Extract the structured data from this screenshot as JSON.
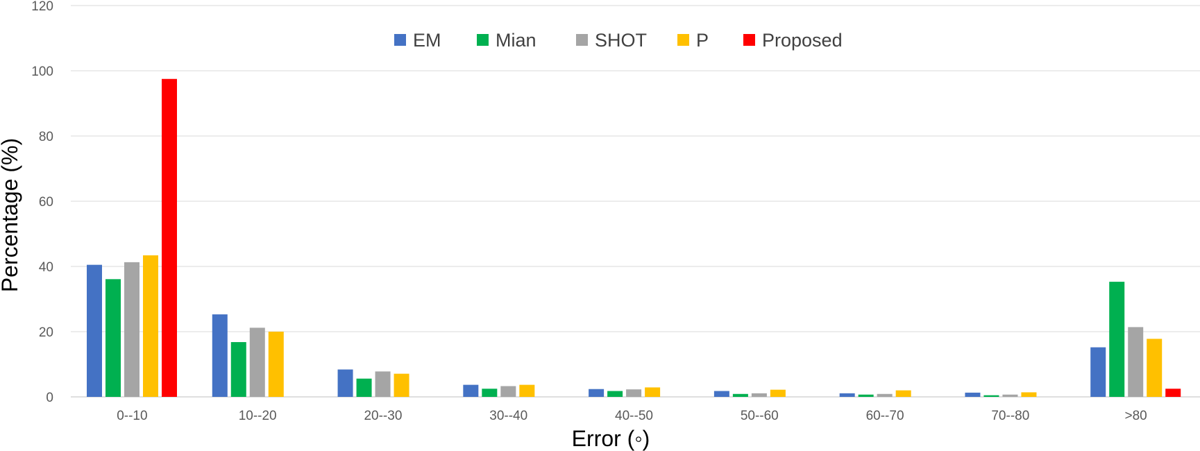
{
  "chart_data": {
    "type": "bar",
    "xlabel": "Error (◦)",
    "ylabel": "Percentage (%)",
    "ylim": [
      0,
      120
    ],
    "yticks": [
      0,
      20,
      40,
      60,
      80,
      100,
      120
    ],
    "grid": true,
    "legend_position": "top",
    "categories": [
      "0--10",
      "10--20",
      "20--30",
      "30--40",
      "40--50",
      "50--60",
      "60--70",
      "70--80",
      ">80"
    ],
    "series": [
      {
        "name": "EM",
        "color": "#4472C4",
        "values": [
          40.5,
          25.3,
          8.4,
          3.7,
          2.4,
          1.8,
          1.1,
          1.3,
          15.2
        ]
      },
      {
        "name": "Mian",
        "color": "#00B050",
        "values": [
          36.1,
          16.8,
          5.6,
          2.5,
          1.8,
          0.9,
          0.7,
          0.5,
          35.3
        ]
      },
      {
        "name": "SHOT",
        "color": "#A5A5A5",
        "values": [
          41.3,
          21.2,
          7.8,
          3.3,
          2.3,
          1.1,
          0.9,
          0.7,
          21.4
        ]
      },
      {
        "name": "P",
        "color": "#FFC000",
        "values": [
          43.4,
          20.0,
          7.1,
          3.7,
          2.9,
          2.2,
          2.0,
          1.4,
          17.8
        ]
      },
      {
        "name": "Proposed",
        "color": "#FF0000",
        "values": [
          97.5,
          0,
          0,
          0,
          0,
          0,
          0,
          0,
          2.5
        ]
      }
    ]
  }
}
